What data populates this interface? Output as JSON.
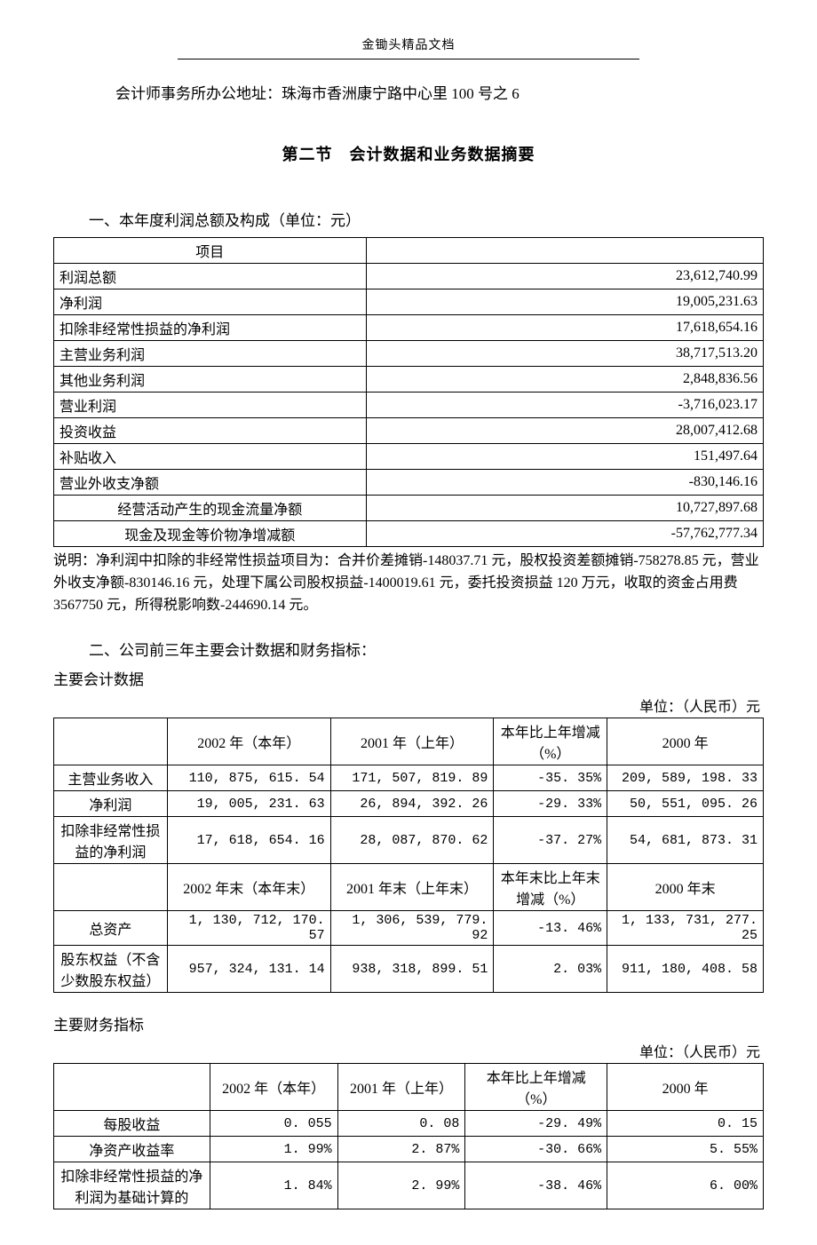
{
  "header": {
    "brand": "金锄头精品文档"
  },
  "address_line": "会计师事务所办公地址：珠海市香洲康宁路中心里 100 号之 6",
  "section2_title": "第二节　会计数据和业务数据摘要",
  "part1": {
    "heading": "一、本年度利润总额及构成（单位：元）",
    "col_header": "项目",
    "rows": [
      {
        "label": "利润总额",
        "value": "23,612,740.99",
        "indent": false
      },
      {
        "label": "净利润",
        "value": "19,005,231.63",
        "indent": false
      },
      {
        "label": "扣除非经常性损益的净利润",
        "value": "17,618,654.16",
        "indent": false
      },
      {
        "label": "主营业务利润",
        "value": "38,717,513.20",
        "indent": false
      },
      {
        "label": "其他业务利润",
        "value": "2,848,836.56",
        "indent": false
      },
      {
        "label": "营业利润",
        "value": "-3,716,023.17",
        "indent": false
      },
      {
        "label": "投资收益",
        "value": "28,007,412.68",
        "indent": false
      },
      {
        "label": "补贴收入",
        "value": "151,497.64",
        "indent": false
      },
      {
        "label": "营业外收支净额",
        "value": "-830,146.16",
        "indent": false
      },
      {
        "label": "经营活动产生的现金流量净额",
        "value": "10,727,897.68",
        "indent": true
      },
      {
        "label": "现金及现金等价物净增减额",
        "value": "-57,762,777.34",
        "indent": true
      }
    ],
    "note": "说明：净利润中扣除的非经常性损益项目为：合并价差摊销-148037.71 元，股权投资差额摊销-758278.85 元，营业外收支净额-830146.16 元，处理下属公司股权损益-1400019.61 元，委托投资损益 120 万元，收取的资金占用费 3567750 元，所得税影响数-244690.14 元。"
  },
  "part2": {
    "heading": "二、公司前三年主要会计数据和财务指标：",
    "sub1": "主要会计数据",
    "unit": "单位：（人民币）元",
    "headers_a": [
      "",
      "2002 年（本年）",
      "2001 年（上年）",
      "本年比上年增减（%）",
      "2000 年"
    ],
    "rows_a": [
      {
        "label": "主营业务收入",
        "v1": "110, 875, 615. 54",
        "v2": "171, 507, 819. 89",
        "pct": "-35. 35%",
        "v3": "209, 589, 198. 33"
      },
      {
        "label": "净利润",
        "v1": "19, 005, 231. 63",
        "v2": "26, 894, 392. 26",
        "pct": "-29. 33%",
        "v3": "50, 551, 095. 26"
      },
      {
        "label": "扣除非经常性损益的净利润",
        "v1": "17, 618, 654. 16",
        "v2": "28, 087, 870. 62",
        "pct": "-37. 27%",
        "v3": "54, 681, 873. 31"
      }
    ],
    "headers_b": [
      "",
      "2002 年末（本年末）",
      "2001 年末（上年末）",
      "本年末比上年末增减（%）",
      "2000 年末"
    ],
    "rows_b": [
      {
        "label": "总资产",
        "v1": "1, 130, 712, 170. 57",
        "v2": "1, 306, 539, 779. 92",
        "pct": "-13. 46%",
        "v3": "1, 133, 731, 277. 25"
      },
      {
        "label": "股东权益（不含少数股东权益）",
        "v1": "957, 324, 131. 14",
        "v2": "938, 318, 899. 51",
        "pct": "2. 03%",
        "v3": "911, 180, 408. 58"
      }
    ],
    "sub2": "主要财务指标",
    "unit2": "单位：（人民币）元",
    "headers_c": [
      "",
      "2002 年（本年）",
      "2001 年（上年）",
      "本年比上年增减（%）",
      "2000 年"
    ],
    "rows_c": [
      {
        "label": "每股收益",
        "v1": "0. 055",
        "v2": "0. 08",
        "pct": "-29. 49%",
        "v3": "0. 15"
      },
      {
        "label": "净资产收益率",
        "v1": "1. 99%",
        "v2": "2. 87%",
        "pct": "-30. 66%",
        "v3": "5. 55%"
      },
      {
        "label": "扣除非经常性损益的净利润为基础计算的",
        "v1": "1. 84%",
        "v2": "2. 99%",
        "pct": "-38. 46%",
        "v3": "6. 00%"
      }
    ]
  },
  "style": {
    "page_bg": "#ffffff",
    "text_color": "#000000",
    "border_color": "#000000",
    "font_family": "SimSun",
    "body_font_size_pt": 12,
    "title_font_size_pt": 13,
    "table1_cols": {
      "col1_pct": 44,
      "col2_pct": 56
    },
    "table2_cols_pct": [
      16,
      23,
      23,
      16,
      22
    ],
    "table3_cols_pct": [
      22,
      18,
      18,
      20,
      22
    ]
  }
}
